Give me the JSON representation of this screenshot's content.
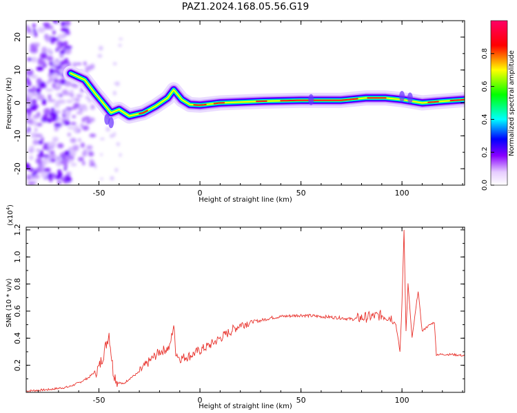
{
  "title": "PAZ1.2024.168.05.56.G19",
  "chart_data": [
    {
      "type": "heatmap",
      "xlabel": "Height of straight line (km)",
      "ylabel": "Frequency (Hz)",
      "xlim": [
        -86,
        131
      ],
      "ylim": [
        -25,
        25
      ],
      "xticks": [
        -50,
        0,
        50,
        100
      ],
      "yticks": [
        -20,
        -10,
        0,
        10,
        20
      ],
      "colorbar": {
        "label": "Normalized spectral amplitude",
        "range": [
          0,
          1
        ],
        "ticks": [
          "0.0",
          "0.2",
          "0.4",
          "0.6",
          "0.8"
        ],
        "colormap": [
          "#ffffff",
          "#8800ff",
          "#0000ff",
          "#00ffff",
          "#00ff00",
          "#ffff00",
          "#ff0000",
          "#ff0066"
        ]
      },
      "ridge": [
        {
          "x": -64,
          "f": 9
        },
        {
          "x": -57,
          "f": 7
        },
        {
          "x": -52,
          "f": 3
        },
        {
          "x": -48,
          "f": 0
        },
        {
          "x": -44,
          "f": -3
        },
        {
          "x": -40,
          "f": -2
        },
        {
          "x": -35,
          "f": -4
        },
        {
          "x": -28,
          "f": -3
        },
        {
          "x": -22,
          "f": -1
        },
        {
          "x": -16,
          "f": 1.5
        },
        {
          "x": -13,
          "f": 4
        },
        {
          "x": -9,
          "f": 1
        },
        {
          "x": -5,
          "f": -0.5
        },
        {
          "x": 0,
          "f": -0.7
        },
        {
          "x": 10,
          "f": 0
        },
        {
          "x": 30,
          "f": 0.5
        },
        {
          "x": 50,
          "f": 0.8
        },
        {
          "x": 70,
          "f": 0.8
        },
        {
          "x": 82,
          "f": 1.5
        },
        {
          "x": 92,
          "f": 1.5
        },
        {
          "x": 100,
          "f": 1
        },
        {
          "x": 110,
          "f": 0
        },
        {
          "x": 120,
          "f": 0.5
        },
        {
          "x": 131,
          "f": 1
        }
      ]
    },
    {
      "type": "line",
      "xlabel": "Height of straight line (km)",
      "ylabel": "SNR (10 * v/v)",
      "yscale_note": "(x10",
      "yscale_exp": "4",
      "yscale_close": ")",
      "xlim": [
        -86,
        131
      ],
      "ylim": [
        0,
        1.22
      ],
      "xticks": [
        -50,
        0,
        50,
        100
      ],
      "yticks": [
        "0.2",
        "0.4",
        "0.6",
        "0.8",
        "1.0",
        "1.2"
      ],
      "color": "#e8302a",
      "series": [
        {
          "x": [
            -86,
            -75,
            -65,
            -60,
            -55,
            -50,
            -47,
            -45,
            -44,
            -43,
            -41,
            -38,
            -35,
            -30,
            -25,
            -20,
            -15,
            -13,
            -12,
            -10,
            -5,
            0,
            5,
            10,
            15,
            20,
            25,
            30,
            35,
            40,
            50,
            60,
            70,
            75,
            80,
            85,
            90,
            95,
            97,
            99,
            100,
            101,
            102,
            103,
            105,
            108,
            110,
            112,
            116,
            117,
            120,
            125,
            131
          ],
          "y": [
            0.01,
            0.02,
            0.04,
            0.07,
            0.11,
            0.18,
            0.32,
            0.44,
            0.3,
            0.16,
            0.08,
            0.06,
            0.1,
            0.15,
            0.23,
            0.3,
            0.33,
            0.5,
            0.3,
            0.25,
            0.27,
            0.31,
            0.35,
            0.4,
            0.45,
            0.5,
            0.52,
            0.53,
            0.55,
            0.56,
            0.57,
            0.56,
            0.55,
            0.54,
            0.55,
            0.56,
            0.57,
            0.55,
            0.5,
            0.3,
            0.65,
            1.2,
            0.45,
            0.8,
            0.4,
            0.75,
            0.45,
            0.48,
            0.52,
            0.28,
            0.28,
            0.28,
            0.27
          ]
        }
      ]
    }
  ]
}
